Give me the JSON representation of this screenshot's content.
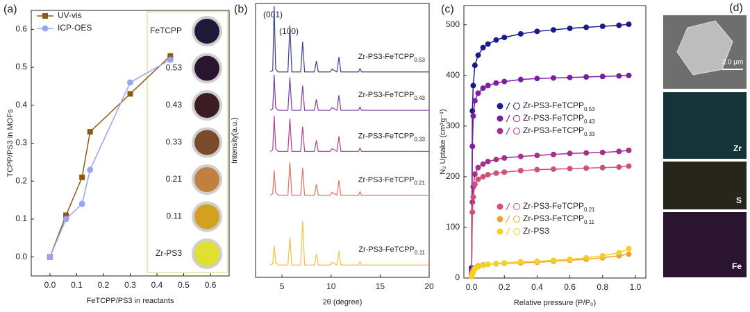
{
  "chart_data": [
    {
      "type": "line",
      "panel": "(a)",
      "xlabel": "FeTCPP/PS3 in reactants",
      "ylabel": "TCPP/PS3 in MOFs",
      "xlim": [
        -0.07,
        0.67
      ],
      "ylim": [
        -0.05,
        0.65
      ],
      "xticks": [
        {
          "value": 0,
          "label": "0.0"
        },
        0.1,
        0.2,
        0.3,
        0.4,
        0.5,
        0.6
      ],
      "yticks": [
        {
          "value": 0,
          "label": "0.0"
        },
        0.1,
        0.2,
        0.3,
        0.4,
        0.5,
        0.6
      ],
      "legend": "upper left",
      "series": [
        {
          "name": "UV-vis",
          "color": "#8b5a14",
          "marker": "square",
          "x": [
            0,
            0.06,
            0.12,
            0.15,
            0.3,
            0.45
          ],
          "values": [
            0,
            0.11,
            0.21,
            0.33,
            0.43,
            0.53
          ]
        },
        {
          "name": "ICP-OES",
          "color": "#9aa4f0",
          "marker": "circle",
          "x": [
            0,
            0.06,
            0.12,
            0.15,
            0.3,
            0.45
          ],
          "values": [
            0,
            0.1,
            0.14,
            0.23,
            0.46,
            0.52
          ]
        }
      ],
      "inset_labels": [
        "FeTCPP",
        "0.53",
        "0.43",
        "0.33",
        "0.21",
        "0.11",
        "Zr-PS3"
      ]
    },
    {
      "type": "line",
      "panel": "(b)",
      "xlabel": "2θ (degree)",
      "ylabel": "Intensity(a.u.)",
      "xlim": [
        2.3,
        20
      ],
      "ylim": [
        0,
        10
      ],
      "xticks": [
        5,
        10,
        15,
        20
      ],
      "annotations": [
        "(001)",
        "(100)"
      ],
      "x": [
        3.8,
        4.05,
        4.2,
        4.35,
        4.6,
        5.6,
        5.8,
        6.0,
        6.9,
        7.1,
        7.3,
        8.3,
        8.5,
        8.7,
        9.9,
        10.1,
        10.6,
        10.8,
        11.0,
        12.8,
        12.95,
        13.1,
        20
      ],
      "series": [
        {
          "name": "Zr-PS3-FeTCPP0.53",
          "color": "#3c3f8f",
          "values": [
            7.5,
            7.55,
            9.9,
            7.6,
            7.5,
            7.5,
            9.2,
            7.5,
            7.5,
            8.6,
            7.5,
            7.5,
            7.9,
            7.5,
            7.5,
            7.6,
            7.5,
            8.05,
            7.5,
            7.5,
            7.62,
            7.5,
            7.5
          ]
        },
        {
          "name": "Zr-PS3-FeTCPP0.43",
          "color": "#7b3fa0",
          "values": [
            6.1,
            6.15,
            7.4,
            6.2,
            6.1,
            6.1,
            7.3,
            6.1,
            6.1,
            7.0,
            6.1,
            6.1,
            6.5,
            6.1,
            6.1,
            6.2,
            6.1,
            6.65,
            6.1,
            6.1,
            6.22,
            6.1,
            6.1
          ]
        },
        {
          "name": "Zr-PS3-FeTCPP0.33",
          "color": "#b04090",
          "values": [
            4.6,
            4.65,
            5.9,
            4.7,
            4.6,
            4.6,
            5.8,
            4.6,
            4.6,
            5.5,
            4.6,
            4.6,
            5.0,
            4.6,
            4.6,
            4.7,
            4.6,
            5.15,
            4.6,
            4.6,
            4.72,
            4.6,
            4.6
          ]
        },
        {
          "name": "Zr-PS3-FeTCPP0.21",
          "color": "#e07060",
          "values": [
            3.0,
            3.05,
            3.9,
            3.1,
            3.0,
            3.0,
            4.2,
            3.0,
            3.0,
            4.0,
            3.0,
            3.0,
            3.4,
            3.0,
            3.0,
            3.1,
            3.0,
            3.55,
            3.0,
            3.0,
            3.12,
            3.0,
            3.0
          ]
        },
        {
          "name": "Zr-PS3-FeTCPP0.11",
          "color": "#f0c040",
          "values": [
            0.45,
            0.5,
            1.15,
            0.55,
            0.45,
            0.45,
            1.45,
            0.45,
            0.45,
            2.05,
            0.45,
            0.45,
            0.85,
            0.45,
            0.45,
            0.55,
            0.45,
            0.95,
            0.45,
            0.45,
            0.57,
            0.45,
            0.45
          ]
        }
      ]
    },
    {
      "type": "line",
      "panel": "(c)",
      "xlabel": "Relative pressure (P/P₀)",
      "ylabel": "N₂ Uptake (cm³g⁻¹)",
      "xlim": [
        -0.047,
        1.064
      ],
      "ylim": [
        0,
        538
      ],
      "xticks": [
        {
          "value": 0,
          "label": "0.0"
        },
        0.2,
        0.4,
        0.6,
        0.8,
        {
          "value": 1,
          "label": "1.0"
        }
      ],
      "yticks": [
        0,
        100,
        200,
        300,
        400,
        500
      ],
      "x": [
        0,
        0.005,
        0.01,
        0.02,
        0.04,
        0.07,
        0.1,
        0.15,
        0.2,
        0.3,
        0.4,
        0.5,
        0.6,
        0.7,
        0.8,
        0.9,
        0.96
      ],
      "series": [
        {
          "name": "Zr-PS3-FeTCPP0.53",
          "color": "#1a1a8c",
          "marker": "circle",
          "values": [
            20,
            330,
            380,
            420,
            440,
            455,
            462,
            470,
            475,
            482,
            487,
            490,
            493,
            495,
            497,
            499,
            501
          ]
        },
        {
          "name": "Zr-PS3-FeTCPP0.43",
          "color": "#7b1fa2",
          "marker": "circle",
          "values": [
            15,
            260,
            320,
            350,
            365,
            375,
            380,
            385,
            388,
            392,
            394,
            395,
            396,
            397,
            398,
            399,
            400
          ]
        },
        {
          "name": "Zr-PS3-FeTCPP0.33",
          "color": "#a2318c",
          "marker": "circle",
          "values": [
            10,
            150,
            180,
            205,
            218,
            225,
            230,
            234,
            237,
            240,
            242,
            244,
            246,
            247,
            248,
            250,
            252
          ]
        },
        {
          "name": "Zr-PS3-FeTCPP0.21",
          "color": "#d0507a",
          "marker": "circle",
          "values": [
            8,
            130,
            160,
            185,
            195,
            200,
            204,
            207,
            209,
            212,
            214,
            215,
            216,
            217,
            218,
            219,
            221
          ]
        },
        {
          "name": "Zr-PS3-FeTCPP0.11",
          "color": "#f0a030",
          "marker": "circle",
          "values": [
            3,
            10,
            15,
            20,
            24,
            26,
            27,
            28,
            29,
            30,
            31,
            33,
            35,
            37,
            40,
            44,
            47
          ]
        },
        {
          "name": "Zr-PS3",
          "color": "#f5d020",
          "marker": "circle",
          "values": [
            3,
            8,
            12,
            18,
            22,
            25,
            27,
            29,
            30,
            32,
            33,
            35,
            37,
            40,
            44,
            50,
            58
          ]
        }
      ]
    }
  ],
  "panel_d": {
    "label": "(d)",
    "scale_bar": "2.0 μm",
    "maps": [
      "Zr",
      "S",
      "Fe"
    ]
  }
}
